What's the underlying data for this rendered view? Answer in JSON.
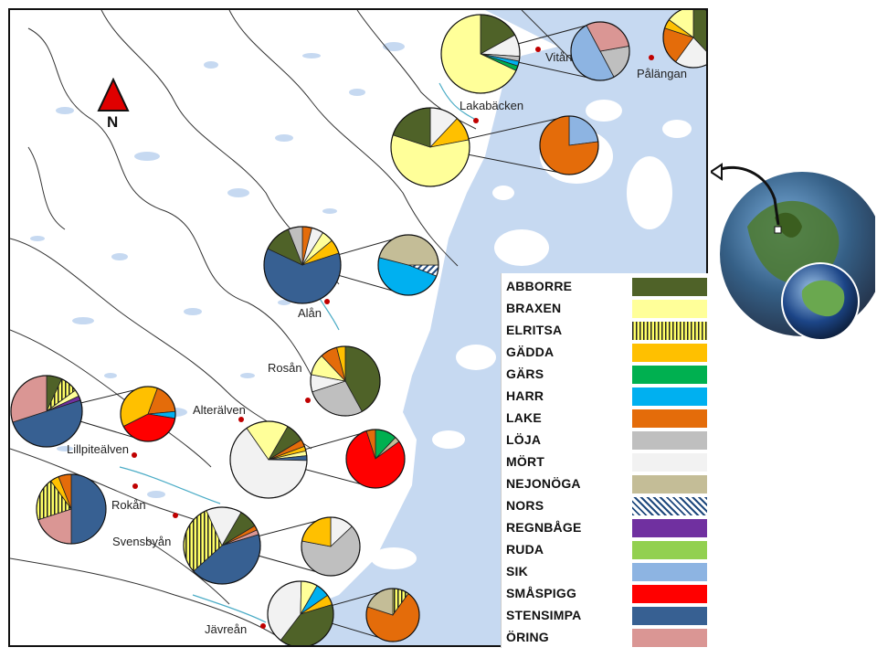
{
  "north_label": "N",
  "legend": [
    {
      "name": "ABBORRE",
      "color": "#4f6228",
      "pattern": "solid"
    },
    {
      "name": "BRAXEN",
      "color": "#ffff99",
      "pattern": "solid"
    },
    {
      "name": "ELRITSA",
      "color": "#ffff66",
      "pattern": "vlines"
    },
    {
      "name": "GÄDDA",
      "color": "#ffc000",
      "pattern": "solid"
    },
    {
      "name": "GÄRS",
      "color": "#00b050",
      "pattern": "solid"
    },
    {
      "name": "HARR",
      "color": "#00b0f0",
      "pattern": "solid"
    },
    {
      "name": "LAKE",
      "color": "#e46c0a",
      "pattern": "solid"
    },
    {
      "name": "LÖJA",
      "color": "#bfbfbf",
      "pattern": "solid"
    },
    {
      "name": "MÖRT",
      "color": "#f2f2f2",
      "pattern": "solid"
    },
    {
      "name": "NEJONÖGA",
      "color": "#c4bd97",
      "pattern": "solid"
    },
    {
      "name": "NORS",
      "color": "#1f497d",
      "pattern": "diag"
    },
    {
      "name": "REGNBÅGE",
      "color": "#7030a0",
      "pattern": "solid"
    },
    {
      "name": "RUDA",
      "color": "#92d050",
      "pattern": "solid"
    },
    {
      "name": "SIK",
      "color": "#8db4e2",
      "pattern": "solid"
    },
    {
      "name": "SMÅSPIGG",
      "color": "#ff0000",
      "pattern": "solid"
    },
    {
      "name": "STENSIMPA",
      "color": "#376092",
      "pattern": "solid"
    },
    {
      "name": "ÖRING",
      "color": "#da9694",
      "pattern": "solid"
    }
  ],
  "places": [
    {
      "name": "Vitån"
    },
    {
      "name": "Pålängan"
    },
    {
      "name": "Lakabäcken"
    },
    {
      "name": "Alån"
    },
    {
      "name": "Rosån"
    },
    {
      "name": "Alterälven"
    },
    {
      "name": "Lillpiteälven"
    },
    {
      "name": "Rokån"
    },
    {
      "name": "Svensbyån"
    },
    {
      "name": "Jävreån"
    }
  ],
  "pie_charts": [
    {
      "site": "Vitån (main)",
      "slices": [
        {
          "species": "ABBORRE",
          "fraction": 0.17
        },
        {
          "species": "MÖRT",
          "fraction": 0.09
        },
        {
          "species": "LÖJA",
          "fraction": 0.02
        },
        {
          "species": "HARR",
          "fraction": 0.02
        },
        {
          "species": "GÄRS",
          "fraction": 0.02
        },
        {
          "species": "BRAXEN",
          "fraction": 0.68
        }
      ]
    },
    {
      "site": "Vitån (inset)",
      "slices": [
        {
          "species": "LÖJA",
          "fraction": 0.2
        },
        {
          "species": "SIK",
          "fraction": 0.5
        },
        {
          "species": "ÖRING",
          "fraction": 0.3
        }
      ]
    },
    {
      "site": "Pålängan",
      "slices": [
        {
          "species": "ABBORRE",
          "fraction": 0.38
        },
        {
          "species": "MÖRT",
          "fraction": 0.22
        },
        {
          "species": "LAKE",
          "fraction": 0.2
        },
        {
          "species": "GÄDDA",
          "fraction": 0.05
        },
        {
          "species": "BRAXEN",
          "fraction": 0.15
        }
      ]
    },
    {
      "site": "Lakabäcken (main)",
      "slices": [
        {
          "species": "MÖRT",
          "fraction": 0.12
        },
        {
          "species": "GÄDDA",
          "fraction": 0.1
        },
        {
          "species": "BRAXEN",
          "fraction": 0.58
        },
        {
          "species": "ABBORRE",
          "fraction": 0.2
        }
      ]
    },
    {
      "site": "Lakabäcken (inset)",
      "slices": [
        {
          "species": "SIK",
          "fraction": 0.23
        },
        {
          "species": "LAKE",
          "fraction": 0.77
        }
      ]
    },
    {
      "site": "Alån (main)",
      "slices": [
        {
          "species": "LAKE",
          "fraction": 0.04
        },
        {
          "species": "MÖRT",
          "fraction": 0.05
        },
        {
          "species": "BRAXEN",
          "fraction": 0.05
        },
        {
          "species": "GÄDDA",
          "fraction": 0.06
        },
        {
          "species": "STENSIMPA",
          "fraction": 0.62
        },
        {
          "species": "ABBORRE",
          "fraction": 0.12
        },
        {
          "species": "LÖJA",
          "fraction": 0.06
        }
      ]
    },
    {
      "site": "Alån (inset)",
      "slices": [
        {
          "species": "NORS",
          "fraction": 0.06
        },
        {
          "species": "HARR",
          "fraction": 0.48
        },
        {
          "species": "NEJONÖGA",
          "fraction": 0.46
        }
      ]
    },
    {
      "site": "Rosån",
      "slices": [
        {
          "species": "ABBORRE",
          "fraction": 0.42
        },
        {
          "species": "LÖJA",
          "fraction": 0.28
        },
        {
          "species": "MÖRT",
          "fraction": 0.08
        },
        {
          "species": "BRAXEN",
          "fraction": 0.1
        },
        {
          "species": "LAKE",
          "fraction": 0.08
        },
        {
          "species": "GÄDDA",
          "fraction": 0.04
        }
      ]
    },
    {
      "site": "Lillpiteälven (main)",
      "slices": [
        {
          "species": "ABBORRE",
          "fraction": 0.07
        },
        {
          "species": "ELRITSA",
          "fraction": 0.08
        },
        {
          "species": "BRAXEN",
          "fraction": 0.03
        },
        {
          "species": "REGNBÅGE",
          "fraction": 0.02
        },
        {
          "species": "STENSIMPA",
          "fraction": 0.5
        },
        {
          "species": "ÖRING",
          "fraction": 0.3
        }
      ]
    },
    {
      "site": "Lillpiteälven (inset)",
      "slices": [
        {
          "species": "LAKE",
          "fraction": 0.18
        },
        {
          "species": "HARR",
          "fraction": 0.04
        },
        {
          "species": "SMÅSPIGG",
          "fraction": 0.4
        },
        {
          "species": "GÄDDA",
          "fraction": 0.38
        }
      ]
    },
    {
      "site": "Alterälven (main)",
      "slices": [
        {
          "species": "ABBORRE",
          "fraction": 0.08
        },
        {
          "species": "LAKE",
          "fraction": 0.03
        },
        {
          "species": "GÄDDA",
          "fraction": 0.02
        },
        {
          "species": "BRAXEN",
          "fraction": 0.02
        },
        {
          "species": "STENSIMPA",
          "fraction": 0.02
        },
        {
          "species": "MÖRT",
          "fraction": 0.65
        },
        {
          "species": "BRAXEN",
          "fraction": 0.18
        }
      ]
    },
    {
      "site": "Alterälven (inset)",
      "slices": [
        {
          "species": "GÄRS",
          "fraction": 0.12
        },
        {
          "species": "NEJONÖGA",
          "fraction": 0.03
        },
        {
          "species": "SMÅSPIGG",
          "fraction": 0.8
        },
        {
          "species": "LAKE",
          "fraction": 0.05
        }
      ]
    },
    {
      "site": "Rokån",
      "slices": [
        {
          "species": "STENSIMPA",
          "fraction": 0.5
        },
        {
          "species": "ÖRING",
          "fraction": 0.2
        },
        {
          "species": "ELRITSA",
          "fraction": 0.2
        },
        {
          "species": "GÄDDA",
          "fraction": 0.04
        },
        {
          "species": "LAKE",
          "fraction": 0.06
        }
      ]
    },
    {
      "site": "Svensbyån (main)",
      "slices": [
        {
          "species": "ABBORRE",
          "fraction": 0.08
        },
        {
          "species": "LAKE",
          "fraction": 0.02
        },
        {
          "species": "ÖRING",
          "fraction": 0.02
        },
        {
          "species": "STENSIMPA",
          "fraction": 0.43
        },
        {
          "species": "ELRITSA",
          "fraction": 0.3
        },
        {
          "species": "MÖRT",
          "fraction": 0.15
        }
      ]
    },
    {
      "site": "Svensbyån (inset)",
      "slices": [
        {
          "species": "MÖRT",
          "fraction": 0.13
        },
        {
          "species": "LÖJA",
          "fraction": 0.65
        },
        {
          "species": "GÄDDA",
          "fraction": 0.22
        }
      ]
    },
    {
      "site": "Jävreån (main)",
      "slices": [
        {
          "species": "HARR",
          "fraction": 0.07
        },
        {
          "species": "GÄDDA",
          "fraction": 0.05
        },
        {
          "species": "ABBORRE",
          "fraction": 0.4
        },
        {
          "species": "MÖRT",
          "fraction": 0.4
        },
        {
          "species": "BRAXEN",
          "fraction": 0.08
        }
      ]
    },
    {
      "site": "Jävreån (inset)",
      "slices": [
        {
          "species": "ELRITSA",
          "fraction": 0.1
        },
        {
          "species": "LAKE",
          "fraction": 0.7
        },
        {
          "species": "NEJONÖGA",
          "fraction": 0.2
        }
      ]
    }
  ]
}
